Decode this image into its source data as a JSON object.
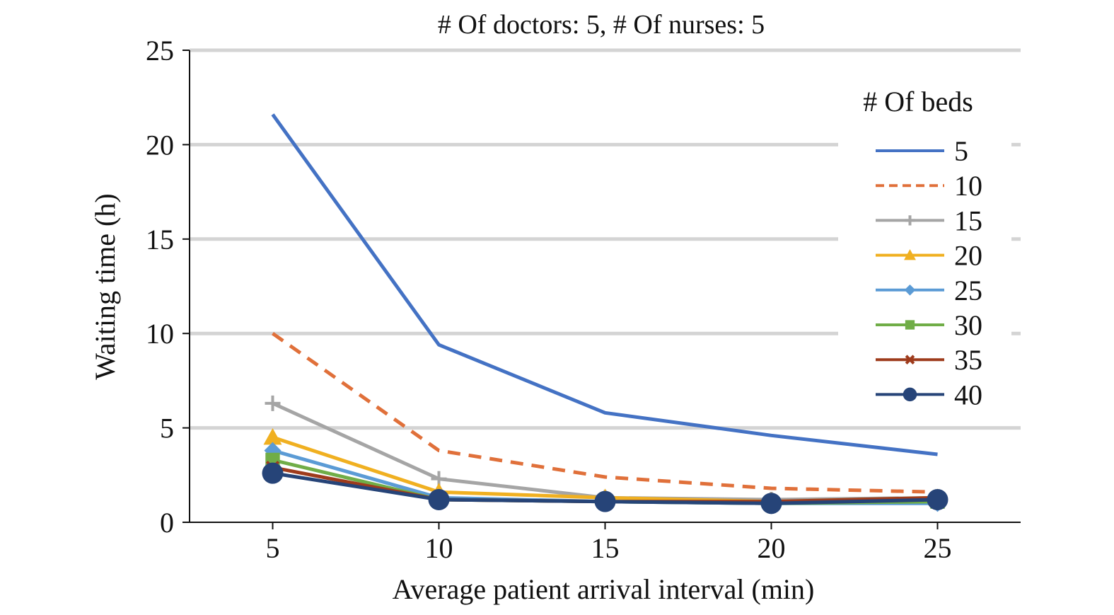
{
  "chart_data": {
    "type": "line",
    "title": "# Of doctors: 5, # Of nurses: 5",
    "xlabel": "Average patient arrival interval (min)",
    "ylabel": "Waiting time (h)",
    "x": [
      5,
      10,
      15,
      20,
      25
    ],
    "x_tick_labels": [
      "5",
      "10",
      "15",
      "20",
      "25"
    ],
    "xlim": [
      2.5,
      27.5
    ],
    "ylim": [
      0,
      25
    ],
    "y_ticks": [
      0,
      5,
      10,
      15,
      20,
      25
    ],
    "y_tick_labels": [
      "0",
      "5",
      "10",
      "15",
      "20",
      "25"
    ],
    "grid": "horizontal",
    "legend": {
      "title": "# Of beds",
      "position": "right"
    },
    "series": [
      {
        "name": "5",
        "color": "#4472c4",
        "dash": "solid",
        "marker": "none",
        "values": [
          21.6,
          9.4,
          5.8,
          4.6,
          3.6
        ]
      },
      {
        "name": "10",
        "color": "#e0703a",
        "dash": "dashed",
        "marker": "none",
        "values": [
          10.0,
          3.8,
          2.4,
          1.8,
          1.6
        ]
      },
      {
        "name": "15",
        "color": "#a5a5a5",
        "dash": "solid",
        "marker": "plus",
        "values": [
          6.3,
          2.3,
          1.3,
          1.2,
          1.3
        ]
      },
      {
        "name": "20",
        "color": "#f0b021",
        "dash": "solid",
        "marker": "triangle",
        "values": [
          4.5,
          1.6,
          1.3,
          1.1,
          1.3
        ]
      },
      {
        "name": "25",
        "color": "#5b9bd5",
        "dash": "solid",
        "marker": "diamond",
        "values": [
          3.8,
          1.3,
          1.1,
          1.0,
          1.0
        ]
      },
      {
        "name": "30",
        "color": "#70ad47",
        "dash": "solid",
        "marker": "square",
        "values": [
          3.3,
          1.2,
          1.1,
          1.0,
          1.1
        ]
      },
      {
        "name": "35",
        "color": "#9e3b1c",
        "dash": "solid",
        "marker": "x",
        "values": [
          2.9,
          1.2,
          1.1,
          1.1,
          1.3
        ]
      },
      {
        "name": "40",
        "color": "#264478",
        "dash": "solid",
        "marker": "circle",
        "values": [
          2.6,
          1.2,
          1.1,
          1.0,
          1.2
        ]
      }
    ]
  }
}
